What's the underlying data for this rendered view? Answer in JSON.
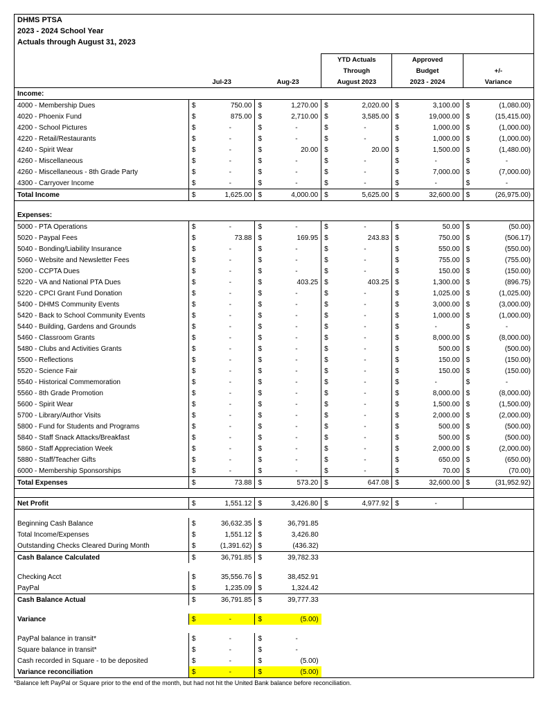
{
  "header": {
    "org": "DHMS PTSA",
    "year": "2023 - 2024 School Year",
    "subtitle": "Actuals through August 31, 2023"
  },
  "columns": {
    "m1": "Jul-23",
    "m2": "Aug-23",
    "ytd_l1": "YTD Actuals",
    "ytd_l2": "Through",
    "ytd_l3": "August 2023",
    "bud_l1": "Approved",
    "bud_l2": "Budget",
    "bud_l3": "2023 - 2024",
    "var_l1": "+/-",
    "var_l2": "Variance"
  },
  "dollar": "$",
  "dash": "-",
  "income_label": "Income:",
  "income": [
    {
      "desc": "4000 - Membership Dues",
      "m1": "750.00",
      "m2": "1,270.00",
      "ytd": "2,020.00",
      "bud": "3,100.00",
      "var": "(1,080.00)"
    },
    {
      "desc": "4020 - Phoenix Fund",
      "m1": "875.00",
      "m2": "2,710.00",
      "ytd": "3,585.00",
      "bud": "19,000.00",
      "var": "(15,415.00)"
    },
    {
      "desc": "4200 - School Pictures",
      "m1": "-",
      "m2": "-",
      "ytd": "-",
      "bud": "1,000.00",
      "var": "(1,000.00)"
    },
    {
      "desc": "4220 - Retail/Restaurants",
      "m1": "-",
      "m2": "-",
      "ytd": "-",
      "bud": "1,000.00",
      "var": "(1,000.00)"
    },
    {
      "desc": "4240 - Spirit Wear",
      "m1": "-",
      "m2": "20.00",
      "ytd": "20.00",
      "bud": "1,500.00",
      "var": "(1,480.00)"
    },
    {
      "desc": "4260 - Miscellaneous",
      "m1": "-",
      "m2": "-",
      "ytd": "-",
      "bud": "-",
      "var": "-"
    },
    {
      "desc": "4260 - Miscellaneous - 8th Grade Party",
      "m1": "-",
      "m2": "-",
      "ytd": "-",
      "bud": "7,000.00",
      "var": "(7,000.00)"
    },
    {
      "desc": "4300 - Carryover Income",
      "m1": "-",
      "m2": "-",
      "ytd": "-",
      "bud": "-",
      "var": "-"
    }
  ],
  "income_total": {
    "desc": "Total Income",
    "m1": "1,625.00",
    "m2": "4,000.00",
    "ytd": "5,625.00",
    "bud": "32,600.00",
    "var": "(26,975.00)"
  },
  "expenses_label": "Expenses:",
  "expenses": [
    {
      "desc": "5000 - PTA Operations",
      "m1": "-",
      "m2": "-",
      "ytd": "-",
      "bud": "50.00",
      "var": "(50.00)"
    },
    {
      "desc": "5020 - Paypal Fees",
      "m1": "73.88",
      "m2": "169.95",
      "ytd": "243.83",
      "bud": "750.00",
      "var": "(506.17)"
    },
    {
      "desc": "5040 - Bonding/Liability Insurance",
      "m1": "-",
      "m2": "-",
      "ytd": "-",
      "bud": "550.00",
      "var": "(550.00)"
    },
    {
      "desc": "5060 - Website and Newsletter Fees",
      "m1": "-",
      "m2": "-",
      "ytd": "-",
      "bud": "755.00",
      "var": "(755.00)"
    },
    {
      "desc": "5200 - CCPTA Dues",
      "m1": "-",
      "m2": "-",
      "ytd": "-",
      "bud": "150.00",
      "var": "(150.00)"
    },
    {
      "desc": "5220 - VA and National PTA Dues",
      "m1": "-",
      "m2": "403.25",
      "ytd": "403.25",
      "bud": "1,300.00",
      "var": "(896.75)"
    },
    {
      "desc": "5220 - CPCI Grant Fund Donation",
      "m1": "-",
      "m2": "-",
      "ytd": "-",
      "bud": "1,025.00",
      "var": "(1,025.00)"
    },
    {
      "desc": "5400 - DHMS Community Events",
      "m1": "-",
      "m2": "-",
      "ytd": "-",
      "bud": "3,000.00",
      "var": "(3,000.00)"
    },
    {
      "desc": "5420 - Back to School Community Events",
      "m1": "-",
      "m2": "-",
      "ytd": "-",
      "bud": "1,000.00",
      "var": "(1,000.00)"
    },
    {
      "desc": "5440 - Building, Gardens and Grounds",
      "m1": "-",
      "m2": "-",
      "ytd": "-",
      "bud": "-",
      "var": "-"
    },
    {
      "desc": "5460 - Classroom Grants",
      "m1": "-",
      "m2": "-",
      "ytd": "-",
      "bud": "8,000.00",
      "var": "(8,000.00)"
    },
    {
      "desc": "5480 - Clubs and Activities Grants",
      "m1": "-",
      "m2": "-",
      "ytd": "-",
      "bud": "500.00",
      "var": "(500.00)"
    },
    {
      "desc": "5500 - Reflections",
      "m1": "-",
      "m2": "-",
      "ytd": "-",
      "bud": "150.00",
      "var": "(150.00)"
    },
    {
      "desc": "5520 - Science Fair",
      "m1": "-",
      "m2": "-",
      "ytd": "-",
      "bud": "150.00",
      "var": "(150.00)"
    },
    {
      "desc": "5540 - Historical Commemoration",
      "m1": "-",
      "m2": "-",
      "ytd": "-",
      "bud": "-",
      "var": "-"
    },
    {
      "desc": "5560 - 8th Grade Promotion",
      "m1": "-",
      "m2": "-",
      "ytd": "-",
      "bud": "8,000.00",
      "var": "(8,000.00)"
    },
    {
      "desc": "5600 - Spirit Wear",
      "m1": "-",
      "m2": "-",
      "ytd": "-",
      "bud": "1,500.00",
      "var": "(1,500.00)"
    },
    {
      "desc": "5700 - Library/Author Visits",
      "m1": "-",
      "m2": "-",
      "ytd": "-",
      "bud": "2,000.00",
      "var": "(2,000.00)"
    },
    {
      "desc": "5800 - Fund for Students and Programs",
      "m1": "-",
      "m2": "-",
      "ytd": "-",
      "bud": "500.00",
      "var": "(500.00)"
    },
    {
      "desc": "5840 - Staff Snack Attacks/Breakfast",
      "m1": "-",
      "m2": "-",
      "ytd": "-",
      "bud": "500.00",
      "var": "(500.00)"
    },
    {
      "desc": "5860 - Staff Appreciation Week",
      "m1": "-",
      "m2": "-",
      "ytd": "-",
      "bud": "2,000.00",
      "var": "(2,000.00)"
    },
    {
      "desc": "5880 - Staff/Teacher  Gifts",
      "m1": "-",
      "m2": "-",
      "ytd": "-",
      "bud": "650.00",
      "var": "(650.00)"
    },
    {
      "desc": "6000 - Membership Sponsorships",
      "m1": "-",
      "m2": "-",
      "ytd": "-",
      "bud": "70.00",
      "var": "(70.00)"
    }
  ],
  "expenses_total": {
    "desc": "Total Expenses",
    "m1": "73.88",
    "m2": "573.20",
    "ytd": "647.08",
    "bud": "32,600.00",
    "var": "(31,952.92)"
  },
  "net_profit": {
    "desc": "Net Profit",
    "m1": "1,551.12",
    "m2": "3,426.80",
    "ytd": "4,977.92",
    "bud": "-"
  },
  "balance_rows": [
    {
      "desc": "Beginning Cash Balance",
      "m1": "36,632.35",
      "m2": "36,791.85"
    },
    {
      "desc": "Total Income/Expenses",
      "m1": "1,551.12",
      "m2": "3,426.80"
    },
    {
      "desc": "Outstanding Checks Cleared During Month",
      "m1": "(1,391.62)",
      "m2": "(436.32)"
    }
  ],
  "cash_calc": {
    "desc": "Cash Balance Calculated",
    "m1": "36,791.85",
    "m2": "39,782.33"
  },
  "acct_rows": [
    {
      "desc": "Checking Acct",
      "m1": "35,556.76",
      "m2": "38,452.91"
    },
    {
      "desc": "PayPal",
      "m1": "1,235.09",
      "m2": "1,324.42"
    }
  ],
  "cash_actual": {
    "desc": "Cash Balance Actual",
    "m1": "36,791.85",
    "m2": "39,777.33"
  },
  "variance_row": {
    "desc": "Variance",
    "m1": "-",
    "m2": "(5.00)"
  },
  "reconcile_rows": [
    {
      "desc": "PayPal balance in transit*",
      "m1": "-",
      "m2": "-"
    },
    {
      "desc": "Square balance in transit*",
      "m1": "-",
      "m2": "-"
    },
    {
      "desc": "Cash recorded in Square - to be deposited",
      "m1": "-",
      "m2": "(5.00)"
    }
  ],
  "var_reconcile": {
    "desc": "Variance reconciliation",
    "m1": "-",
    "m2": "(5.00)"
  },
  "footnote": "*Balance left PayPal or Square prior to the end of the month, but had not hit the United Bank balance before reconciliation."
}
